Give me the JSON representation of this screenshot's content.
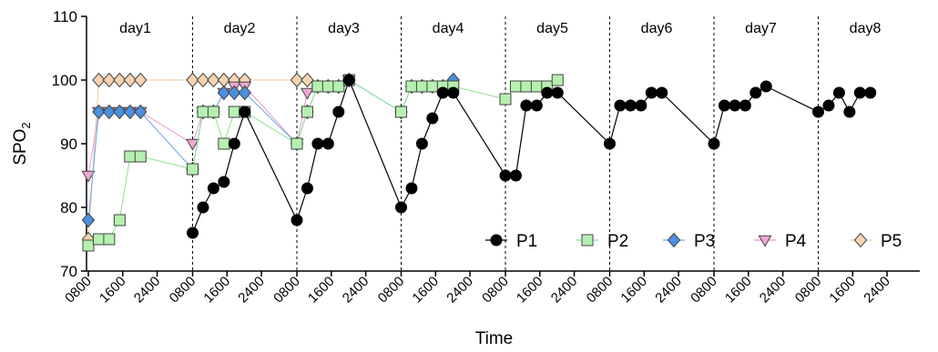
{
  "chart_data": {
    "type": "line",
    "title": "",
    "xlabel": "Time",
    "ylabel": "SPO",
    "ylabel_subscript": "2",
    "ylim": [
      70,
      110
    ],
    "yticks": [
      70,
      80,
      90,
      100,
      110
    ],
    "grid": false,
    "legend_position": "bottom-right",
    "days": [
      "day1",
      "day2",
      "day3",
      "day4",
      "day5",
      "day6",
      "day7",
      "day8"
    ],
    "x_tick_labels": [
      "0800",
      "1600",
      "2400",
      "0800",
      "1600",
      "2400",
      "0800",
      "1600",
      "2400",
      "0800",
      "1600",
      "2400",
      "0800",
      "1600",
      "2400",
      "0800",
      "1600",
      "2400",
      "0800",
      "1600",
      "2400",
      "0800",
      "1600",
      "2400"
    ],
    "series": [
      {
        "name": "P1",
        "marker": "circle",
        "color": "#000000",
        "fill": "#000000",
        "points": [
          [
            10,
            76
          ],
          [
            11,
            80
          ],
          [
            12,
            83
          ],
          [
            13,
            84
          ],
          [
            14,
            90
          ],
          [
            15,
            95
          ],
          [
            20,
            78
          ],
          [
            21,
            83
          ],
          [
            22,
            90
          ],
          [
            23,
            90
          ],
          [
            24,
            95
          ],
          [
            25,
            100
          ],
          [
            30,
            80
          ],
          [
            31,
            83
          ],
          [
            32,
            90
          ],
          [
            33,
            94
          ],
          [
            34,
            98
          ],
          [
            35,
            98
          ],
          [
            40,
            85
          ],
          [
            41,
            85
          ],
          [
            42,
            96
          ],
          [
            43,
            96
          ],
          [
            44,
            98
          ],
          [
            45,
            98
          ],
          [
            50,
            90
          ],
          [
            51,
            96
          ],
          [
            52,
            96
          ],
          [
            53,
            96
          ],
          [
            54,
            98
          ],
          [
            55,
            98
          ],
          [
            60,
            90
          ],
          [
            61,
            96
          ],
          [
            62,
            96
          ],
          [
            63,
            96
          ],
          [
            64,
            98
          ],
          [
            65,
            99
          ],
          [
            70,
            95
          ],
          [
            71,
            96
          ],
          [
            72,
            98
          ],
          [
            73,
            95
          ],
          [
            74,
            98
          ],
          [
            75,
            98
          ]
        ]
      },
      {
        "name": "P2",
        "marker": "square",
        "color": "#8fe08f",
        "fill": "#b6f0b0",
        "points": [
          [
            0,
            74
          ],
          [
            1,
            75
          ],
          [
            2,
            75
          ],
          [
            3,
            78
          ],
          [
            4,
            88
          ],
          [
            5,
            88
          ],
          [
            10,
            86
          ],
          [
            11,
            95
          ],
          [
            12,
            95
          ],
          [
            13,
            90
          ],
          [
            14,
            95
          ],
          [
            15,
            95
          ],
          [
            20,
            90
          ],
          [
            21,
            95
          ],
          [
            22,
            99
          ],
          [
            23,
            99
          ],
          [
            24,
            99
          ],
          [
            25,
            100
          ],
          [
            30,
            95
          ],
          [
            31,
            99
          ],
          [
            32,
            99
          ],
          [
            33,
            99
          ],
          [
            34,
            99
          ],
          [
            35,
            99
          ],
          [
            40,
            97
          ],
          [
            41,
            99
          ],
          [
            42,
            99
          ],
          [
            43,
            99
          ],
          [
            44,
            99
          ],
          [
            45,
            100
          ]
        ]
      },
      {
        "name": "P3",
        "marker": "diamond",
        "color": "#6aa3e8",
        "fill": "#4a8fe0",
        "points": [
          [
            0,
            78
          ],
          [
            1,
            95
          ],
          [
            2,
            95
          ],
          [
            3,
            95
          ],
          [
            4,
            95
          ],
          [
            5,
            95
          ],
          [
            10,
            86
          ],
          [
            11,
            95
          ],
          [
            12,
            95
          ],
          [
            13,
            98
          ],
          [
            14,
            98
          ],
          [
            15,
            98
          ],
          [
            20,
            90
          ],
          [
            21,
            95
          ],
          [
            22,
            99
          ],
          [
            23,
            99
          ],
          [
            24,
            99
          ],
          [
            25,
            100
          ],
          [
            30,
            95
          ],
          [
            31,
            99
          ],
          [
            32,
            99
          ],
          [
            33,
            99
          ],
          [
            34,
            99
          ],
          [
            35,
            100
          ]
        ]
      },
      {
        "name": "P4",
        "marker": "triangle-down",
        "color": "#e89cc8",
        "fill": "#f2a6d2",
        "points": [
          [
            0,
            85
          ],
          [
            1,
            95
          ],
          [
            2,
            95
          ],
          [
            3,
            95
          ],
          [
            4,
            95
          ],
          [
            5,
            95
          ],
          [
            10,
            90
          ],
          [
            11,
            95
          ],
          [
            12,
            95
          ],
          [
            13,
            98
          ],
          [
            14,
            99
          ],
          [
            15,
            99
          ],
          [
            20,
            90
          ],
          [
            21,
            98
          ],
          [
            22,
            99
          ],
          [
            23,
            99
          ],
          [
            24,
            99
          ],
          [
            25,
            100
          ]
        ]
      },
      {
        "name": "P5",
        "marker": "diamond",
        "color": "#f0c8a0",
        "fill": "#f6d3b0",
        "points": [
          [
            0,
            75
          ],
          [
            1,
            100
          ],
          [
            2,
            100
          ],
          [
            3,
            100
          ],
          [
            4,
            100
          ],
          [
            5,
            100
          ],
          [
            10,
            100
          ],
          [
            11,
            100
          ],
          [
            12,
            100
          ],
          [
            13,
            100
          ],
          [
            14,
            100
          ],
          [
            15,
            100
          ],
          [
            20,
            100
          ],
          [
            21,
            100
          ]
        ]
      }
    ]
  }
}
